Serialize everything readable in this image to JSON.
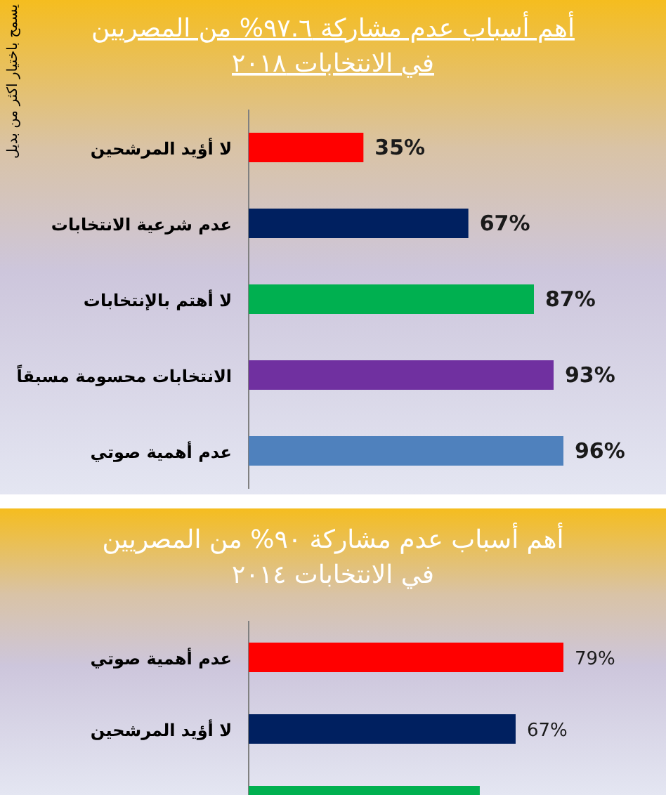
{
  "chart_data": [
    {
      "type": "bar",
      "orientation": "horizontal",
      "title": "أهم أسباب عدم مشاركة ٩٧.٦% من المصريين\nفي الانتخابات ٢٠١٨",
      "categories": [
        "لا أؤيد المرشحين",
        "عدم شرعية الانتخابات",
        "لا أهتم بالإنتخابات",
        "الانتخابات محسومة مسبقاً",
        "عدم أهمية صوتي"
      ],
      "values": [
        35,
        67,
        87,
        93,
        96
      ],
      "colors": [
        "#ff0000",
        "#002060",
        "#00b050",
        "#7030a0",
        "#4f81bd"
      ],
      "value_labels": [
        "35%",
        "67%",
        "87%",
        "93%",
        "96%"
      ],
      "annotations": [
        "يسمح باختيار اكثر من بديل"
      ]
    },
    {
      "type": "bar",
      "orientation": "horizontal",
      "title": "أهم أسباب عدم مشاركة ٩٠% من المصريين\nفي الانتخابات ٢٠١٤",
      "categories": [
        "عدم أهمية صوتي",
        "لا أؤيد المرشحين",
        null
      ],
      "values": [
        79,
        67,
        58
      ],
      "colors": [
        "#ff0000",
        "#002060",
        "#00b050"
      ],
      "value_labels": [
        "79%",
        "67%",
        null
      ]
    }
  ]
}
